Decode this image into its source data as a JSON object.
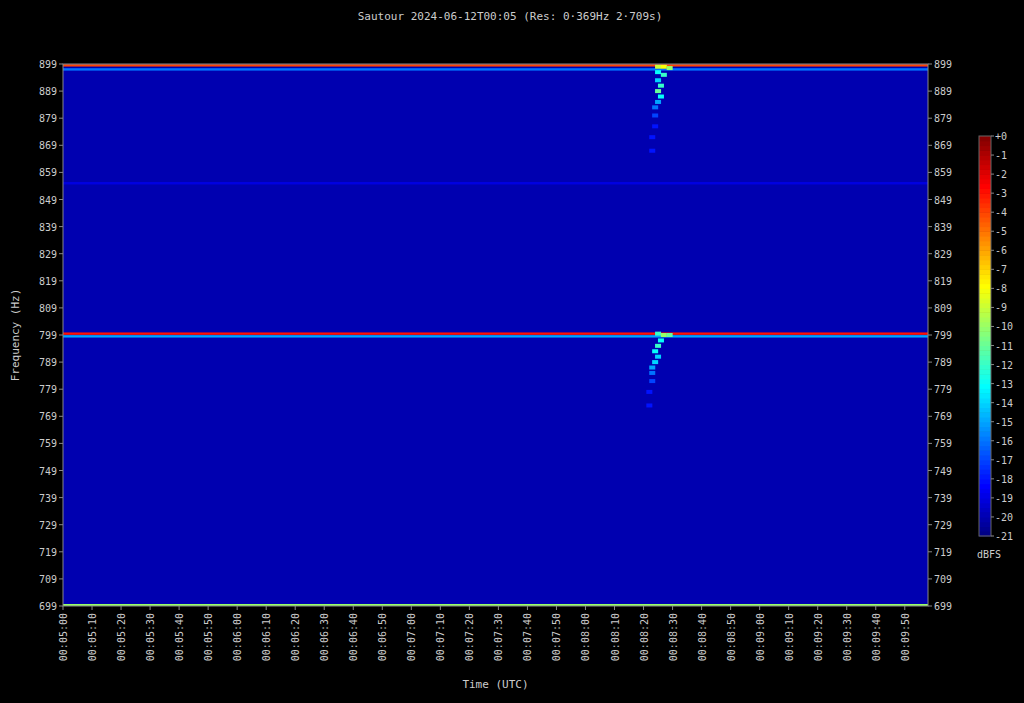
{
  "chart_data": {
    "type": "spectrogram",
    "title": "Sautour 2024-06-12T00:05 (Res: 0·369Hz 2·709s)",
    "x_label": "Time (UTC)",
    "y_label": "Frequency (Hz)",
    "xlim": [
      300,
      598
    ],
    "xticks": [
      {
        "value": 300,
        "label": "00:05:00"
      },
      {
        "value": 310,
        "label": "00:05:10"
      },
      {
        "value": 320,
        "label": "00:05:20"
      },
      {
        "value": 330,
        "label": "00:05:30"
      },
      {
        "value": 340,
        "label": "00:05:40"
      },
      {
        "value": 350,
        "label": "00:05:50"
      },
      {
        "value": 360,
        "label": "00:06:00"
      },
      {
        "value": 370,
        "label": "00:06:10"
      },
      {
        "value": 380,
        "label": "00:06:20"
      },
      {
        "value": 390,
        "label": "00:06:30"
      },
      {
        "value": 400,
        "label": "00:06:40"
      },
      {
        "value": 410,
        "label": "00:06:50"
      },
      {
        "value": 420,
        "label": "00:07:00"
      },
      {
        "value": 430,
        "label": "00:07:10"
      },
      {
        "value": 440,
        "label": "00:07:20"
      },
      {
        "value": 450,
        "label": "00:07:30"
      },
      {
        "value": 460,
        "label": "00:07:40"
      },
      {
        "value": 470,
        "label": "00:07:50"
      },
      {
        "value": 480,
        "label": "00:08:00"
      },
      {
        "value": 490,
        "label": "00:08:10"
      },
      {
        "value": 500,
        "label": "00:08:20"
      },
      {
        "value": 510,
        "label": "00:08:30"
      },
      {
        "value": 520,
        "label": "00:08:40"
      },
      {
        "value": 530,
        "label": "00:08:50"
      },
      {
        "value": 540,
        "label": "00:09:00"
      },
      {
        "value": 550,
        "label": "00:09:10"
      },
      {
        "value": 560,
        "label": "00:09:20"
      },
      {
        "value": 570,
        "label": "00:09:30"
      },
      {
        "value": 580,
        "label": "00:09:40"
      },
      {
        "value": 590,
        "label": "00:09:50"
      }
    ],
    "ylim": [
      699,
      899
    ],
    "yticks": [
      899,
      889,
      879,
      869,
      859,
      849,
      839,
      829,
      819,
      809,
      799,
      789,
      779,
      769,
      759,
      749,
      739,
      729,
      719,
      709,
      699
    ],
    "background": -20,
    "lines": [
      {
        "frequency": 898.5,
        "value": -4
      },
      {
        "frequency": 897,
        "value": -16
      },
      {
        "frequency": 855,
        "value": -19
      },
      {
        "frequency": 799.5,
        "value": -3
      },
      {
        "frequency": 798.5,
        "value": -15
      },
      {
        "frequency": 699.3,
        "value": -10
      }
    ],
    "cells": [
      {
        "time": 505,
        "frequency": 898,
        "value": -9
      },
      {
        "time": 507,
        "frequency": 898,
        "value": -8
      },
      {
        "time": 509,
        "frequency": 897.5,
        "value": -10
      },
      {
        "time": 505,
        "frequency": 896,
        "value": -13
      },
      {
        "time": 507,
        "frequency": 895,
        "value": -12
      },
      {
        "time": 505,
        "frequency": 893,
        "value": -14
      },
      {
        "time": 506,
        "frequency": 891,
        "value": -12
      },
      {
        "time": 505,
        "frequency": 889,
        "value": -11
      },
      {
        "time": 506,
        "frequency": 887,
        "value": -13
      },
      {
        "time": 505,
        "frequency": 885,
        "value": -15
      },
      {
        "time": 504,
        "frequency": 883,
        "value": -16
      },
      {
        "time": 504,
        "frequency": 880,
        "value": -17
      },
      {
        "time": 504,
        "frequency": 876,
        "value": -18
      },
      {
        "time": 503,
        "frequency": 872,
        "value": -18
      },
      {
        "time": 503,
        "frequency": 867,
        "value": -18
      },
      {
        "time": 505,
        "frequency": 799.5,
        "value": -12
      },
      {
        "time": 507,
        "frequency": 799,
        "value": -10
      },
      {
        "time": 509,
        "frequency": 799,
        "value": -11
      },
      {
        "time": 506,
        "frequency": 797,
        "value": -13
      },
      {
        "time": 505,
        "frequency": 795,
        "value": -12
      },
      {
        "time": 504,
        "frequency": 793,
        "value": -13
      },
      {
        "time": 505,
        "frequency": 791,
        "value": -14
      },
      {
        "time": 504,
        "frequency": 789,
        "value": -14
      },
      {
        "time": 503,
        "frequency": 787,
        "value": -15
      },
      {
        "time": 503,
        "frequency": 785,
        "value": -16
      },
      {
        "time": 503,
        "frequency": 782,
        "value": -17
      },
      {
        "time": 502,
        "frequency": 778,
        "value": -18
      },
      {
        "time": 502,
        "frequency": 773,
        "value": -18
      }
    ],
    "colorbar": {
      "label": "dBFS",
      "range": [
        -21,
        0
      ],
      "ticks": [
        {
          "value": 0,
          "label": "+0"
        },
        -1,
        -2,
        -3,
        -4,
        -5,
        -6,
        -7,
        -8,
        -9,
        -10,
        -11,
        -12,
        -13,
        -14,
        -15,
        -16,
        -17,
        -18,
        -19,
        -20,
        -21
      ]
    }
  }
}
